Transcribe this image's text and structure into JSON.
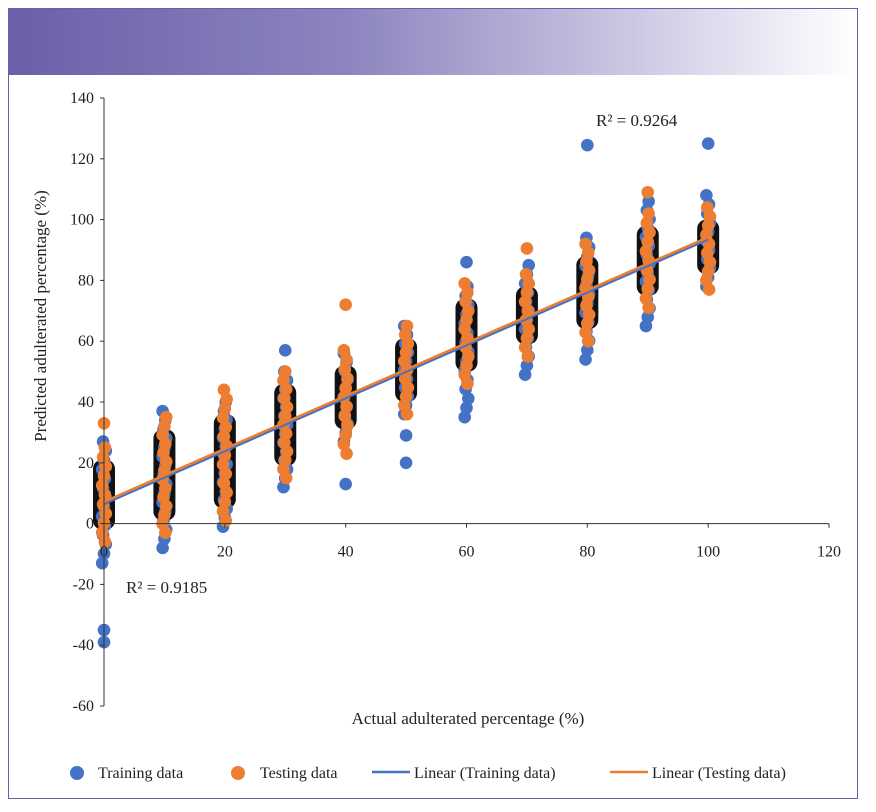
{
  "colors": {
    "training": "#4472c4",
    "testing": "#ed7d31",
    "band": "#111111",
    "banner_start": "#6a60a9",
    "frame": "#6a60a9"
  },
  "chart_data": {
    "type": "scatter",
    "title": "",
    "xlabel": "Actual adulterated percentage (%)",
    "ylabel": "Predicted adulterated percentage (%)",
    "xlim": [
      0,
      120
    ],
    "ylim": [
      -60,
      140
    ],
    "xticks": [
      0,
      20,
      40,
      60,
      80,
      100,
      120
    ],
    "yticks": [
      -60,
      -40,
      -20,
      0,
      20,
      40,
      60,
      80,
      100,
      120,
      140
    ],
    "annotations": [
      {
        "text": "R² = 0.9264",
        "x": 79,
        "y": 131
      },
      {
        "text": "R² = 0.9185",
        "x": 8,
        "y": -22
      }
    ],
    "series": [
      {
        "name": "Training data",
        "kind": "scatter",
        "groups": [
          {
            "x": 0,
            "min": -13,
            "max": 27,
            "outliers": [
              -35,
              -39
            ]
          },
          {
            "x": 10,
            "min": -8,
            "max": 37,
            "outliers": []
          },
          {
            "x": 20,
            "min": -1,
            "max": 40,
            "outliers": []
          },
          {
            "x": 30,
            "min": 12,
            "max": 50,
            "outliers": [
              57
            ]
          },
          {
            "x": 40,
            "min": 27,
            "max": 56,
            "outliers": [
              13
            ]
          },
          {
            "x": 50,
            "min": 36,
            "max": 65,
            "outliers": [
              29,
              20
            ]
          },
          {
            "x": 60,
            "min": 35,
            "max": 78,
            "outliers": [
              86
            ]
          },
          {
            "x": 70,
            "min": 49,
            "max": 85,
            "outliers": []
          },
          {
            "x": 80,
            "min": 54,
            "max": 94,
            "outliers": [
              124.5
            ]
          },
          {
            "x": 90,
            "min": 65,
            "max": 106,
            "outliers": []
          },
          {
            "x": 100,
            "min": 78,
            "max": 108,
            "outliers": [
              125
            ]
          }
        ]
      },
      {
        "name": "Testing data",
        "kind": "scatter",
        "groups": [
          {
            "x": 0,
            "min": -6,
            "max": 25,
            "outliers": [
              33
            ]
          },
          {
            "x": 10,
            "min": -3,
            "max": 35,
            "outliers": []
          },
          {
            "x": 20,
            "min": 1,
            "max": 44,
            "outliers": []
          },
          {
            "x": 30,
            "min": 15,
            "max": 50,
            "outliers": []
          },
          {
            "x": 40,
            "min": 23,
            "max": 57,
            "outliers": [
              72
            ]
          },
          {
            "x": 50,
            "min": 36,
            "max": 65,
            "outliers": []
          },
          {
            "x": 60,
            "min": 46,
            "max": 79,
            "outliers": []
          },
          {
            "x": 70,
            "min": 55,
            "max": 82,
            "outliers": [
              90.5
            ]
          },
          {
            "x": 80,
            "min": 60,
            "max": 92,
            "outliers": []
          },
          {
            "x": 90,
            "min": 71,
            "max": 102,
            "outliers": [
              109
            ]
          },
          {
            "x": 100,
            "min": 77,
            "max": 104,
            "outliers": []
          }
        ]
      },
      {
        "name": "Linear (Training data)",
        "kind": "line",
        "x": [
          0,
          100
        ],
        "y": [
          6.5,
          93.5
        ]
      },
      {
        "name": "Linear (Testing data)",
        "kind": "line",
        "x": [
          0,
          100
        ],
        "y": [
          7.2,
          94.2
        ]
      }
    ],
    "legend_position": "bottom"
  }
}
